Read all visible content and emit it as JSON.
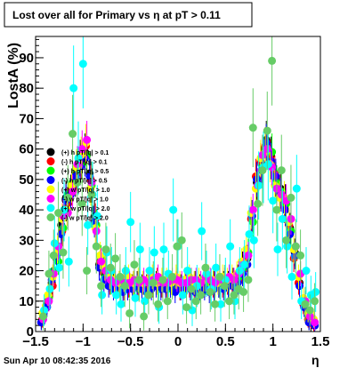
{
  "chart_data": {
    "type": "scatter",
    "title": "Lost over all for Primary vs   η at pT > 0.11",
    "xlabel": "η",
    "ylabel": "LostA (%)",
    "xlim": [
      -1.5,
      1.5
    ],
    "ylim": [
      0,
      97
    ],
    "x_ticks": [
      "−1.5",
      "−1",
      "−0.5",
      "0",
      "0.5",
      "1",
      "1.5"
    ],
    "y_ticks": [
      "0",
      "10",
      "20",
      "30",
      "40",
      "50",
      "60",
      "70",
      "80",
      "90"
    ],
    "grid": false,
    "legend_position": "middle-left",
    "series": [
      {
        "name": "(+) h pT/|q| > 0.1",
        "color": "#000000",
        "x": [
          -1.44,
          -1.38,
          -1.33,
          -1.28,
          -1.23,
          -1.18,
          -1.13,
          -1.08,
          -1.03,
          -0.98,
          -0.93,
          -0.88,
          -0.83,
          -0.78,
          -0.73,
          -0.68,
          -0.63,
          -0.58,
          -0.53,
          -0.48,
          -0.43,
          -0.38,
          -0.33,
          -0.28,
          -0.23,
          -0.18,
          -0.13,
          -0.08,
          -0.03,
          0.03,
          0.08,
          0.13,
          0.18,
          0.23,
          0.28,
          0.33,
          0.38,
          0.43,
          0.48,
          0.53,
          0.58,
          0.63,
          0.68,
          0.73,
          0.78,
          0.83,
          0.88,
          0.93,
          0.98,
          1.03,
          1.08,
          1.13,
          1.18,
          1.23,
          1.28,
          1.33,
          1.38,
          1.44
        ],
        "y": [
          3,
          9,
          16,
          24,
          35,
          44,
          46,
          50,
          57,
          59,
          52,
          38,
          22,
          19,
          17,
          16,
          15,
          15,
          16,
          15,
          16,
          15,
          15,
          16,
          16,
          15,
          16,
          15,
          15,
          15,
          15,
          16,
          16,
          15,
          15,
          15,
          16,
          15,
          16,
          16,
          17,
          18,
          22,
          24,
          38,
          49,
          55,
          63,
          58,
          50,
          47,
          43,
          34,
          26,
          16,
          8,
          3,
          2
        ]
      },
      {
        "name": "(-) h pT/|q| > 0.1",
        "color": "#ff0000",
        "x": [
          -1.43,
          -1.37,
          -1.32,
          -1.27,
          -1.22,
          -1.17,
          -1.12,
          -1.07,
          -1.02,
          -0.97,
          -0.92,
          -0.87,
          -0.82,
          -0.77,
          -0.72,
          -0.67,
          -0.62,
          -0.57,
          -0.52,
          -0.47,
          -0.42,
          -0.37,
          -0.32,
          -0.27,
          -0.22,
          -0.17,
          -0.12,
          -0.07,
          -0.02,
          0.02,
          0.07,
          0.12,
          0.17,
          0.22,
          0.27,
          0.32,
          0.37,
          0.42,
          0.47,
          0.52,
          0.57,
          0.62,
          0.67,
          0.72,
          0.77,
          0.82,
          0.87,
          0.92,
          0.97,
          1.02,
          1.07,
          1.12,
          1.17,
          1.22,
          1.27,
          1.32,
          1.37,
          1.43
        ],
        "y": [
          4,
          10,
          15,
          26,
          33,
          42,
          47,
          52,
          56,
          61,
          50,
          37,
          23,
          20,
          16,
          15,
          16,
          14,
          15,
          16,
          15,
          16,
          14,
          15,
          17,
          15,
          15,
          16,
          16,
          14,
          16,
          15,
          15,
          16,
          15,
          16,
          15,
          17,
          15,
          16,
          16,
          17,
          20,
          24,
          37,
          51,
          56,
          61,
          57,
          52,
          46,
          41,
          35,
          24,
          16,
          9,
          4,
          2
        ]
      },
      {
        "name": "(+) h pT/|q| > 0.5",
        "color": "#00ff00",
        "x": [
          -1.42,
          -1.36,
          -1.31,
          -1.26,
          -1.21,
          -1.16,
          -1.11,
          -1.06,
          -1.01,
          -0.96,
          -0.91,
          -0.86,
          -0.81,
          -0.76,
          -0.71,
          -0.66,
          -0.61,
          -0.56,
          -0.51,
          -0.46,
          -0.41,
          -0.36,
          -0.31,
          -0.26,
          -0.21,
          -0.16,
          -0.11,
          -0.06,
          -0.01,
          0.04,
          0.09,
          0.14,
          0.19,
          0.24,
          0.29,
          0.34,
          0.39,
          0.44,
          0.49,
          0.54,
          0.59,
          0.64,
          0.69,
          0.74,
          0.79,
          0.84,
          0.89,
          0.94,
          0.99,
          1.04,
          1.09,
          1.14,
          1.19,
          1.24,
          1.29,
          1.34,
          1.39,
          1.44
        ],
        "y": [
          5,
          11,
          20,
          23,
          34,
          45,
          49,
          53,
          55,
          58,
          48,
          35,
          24,
          18,
          16,
          15,
          14,
          16,
          15,
          15,
          14,
          16,
          16,
          15,
          15,
          16,
          14,
          15,
          16,
          15,
          16,
          15,
          14,
          15,
          16,
          15,
          15,
          16,
          16,
          17,
          16,
          18,
          21,
          26,
          36,
          48,
          54,
          60,
          59,
          49,
          46,
          42,
          33,
          25,
          19,
          10,
          5,
          3
        ]
      },
      {
        "name": "(-) h pT/|q| > 0.5",
        "color": "#0000ff",
        "x": [
          -1.44,
          -1.38,
          -1.33,
          -1.28,
          -1.23,
          -1.18,
          -1.13,
          -1.08,
          -1.03,
          -0.98,
          -0.93,
          -0.88,
          -0.83,
          -0.78,
          -0.73,
          -0.68,
          -0.63,
          -0.58,
          -0.53,
          -0.48,
          -0.43,
          -0.38,
          -0.33,
          -0.28,
          -0.23,
          -0.18,
          -0.13,
          -0.08,
          -0.03,
          0.03,
          0.08,
          0.13,
          0.18,
          0.23,
          0.28,
          0.33,
          0.38,
          0.43,
          0.48,
          0.53,
          0.58,
          0.63,
          0.68,
          0.73,
          0.78,
          0.83,
          0.88,
          0.93,
          0.98,
          1.03,
          1.08,
          1.13,
          1.18,
          1.23,
          1.28,
          1.33,
          1.38,
          1.44
        ],
        "y": [
          3,
          8,
          17,
          25,
          32,
          43,
          45,
          51,
          54,
          57,
          51,
          36,
          21,
          17,
          15,
          14,
          15,
          13,
          14,
          14,
          15,
          14,
          13,
          14,
          15,
          14,
          14,
          15,
          13,
          14,
          15,
          14,
          13,
          14,
          14,
          13,
          14,
          15,
          14,
          15,
          15,
          16,
          19,
          22,
          38,
          50,
          53,
          62,
          56,
          51,
          45,
          40,
          32,
          25,
          15,
          8,
          3,
          2
        ]
      },
      {
        "name": "(+) w pT/|q| > 1.0",
        "color": "#ffff00",
        "x": [
          -1.43,
          -1.37,
          -1.32,
          -1.27,
          -1.22,
          -1.17,
          -1.12,
          -1.07,
          -1.02,
          -0.97,
          -0.92,
          -0.87,
          -0.82,
          -0.77,
          -0.72,
          -0.67,
          -0.62,
          -0.57,
          -0.52,
          -0.47,
          -0.42,
          -0.37,
          -0.32,
          -0.27,
          -0.22,
          -0.17,
          -0.12,
          -0.07,
          -0.02,
          0.02,
          0.07,
          0.12,
          0.17,
          0.22,
          0.27,
          0.32,
          0.37,
          0.42,
          0.47,
          0.52,
          0.57,
          0.62,
          0.67,
          0.72,
          0.77,
          0.82,
          0.87,
          0.92,
          0.97,
          1.02,
          1.07,
          1.12,
          1.17,
          1.22,
          1.27,
          1.32,
          1.37,
          1.43
        ],
        "y": [
          6,
          12,
          18,
          27,
          37,
          40,
          48,
          54,
          58,
          62,
          47,
          34,
          25,
          21,
          18,
          17,
          16,
          17,
          18,
          16,
          17,
          16,
          17,
          18,
          16,
          17,
          17,
          16,
          18,
          16,
          17,
          18,
          16,
          17,
          17,
          18,
          17,
          16,
          18,
          17,
          18,
          19,
          23,
          27,
          39,
          47,
          57,
          59,
          55,
          48,
          44,
          44,
          36,
          27,
          18,
          11,
          6,
          4
        ]
      },
      {
        "name": "(-) w pT/|q| > 1.0",
        "color": "#ff00ff",
        "x": [
          -1.42,
          -1.36,
          -1.31,
          -1.26,
          -1.21,
          -1.16,
          -1.11,
          -1.06,
          -1.01,
          -0.96,
          -0.91,
          -0.86,
          -0.81,
          -0.76,
          -0.71,
          -0.66,
          -0.61,
          -0.56,
          -0.51,
          -0.46,
          -0.41,
          -0.36,
          -0.31,
          -0.26,
          -0.21,
          -0.16,
          -0.11,
          -0.06,
          -0.01,
          0.04,
          0.09,
          0.14,
          0.19,
          0.24,
          0.29,
          0.34,
          0.39,
          0.44,
          0.49,
          0.54,
          0.59,
          0.64,
          0.69,
          0.74,
          0.79,
          0.84,
          0.89,
          0.94,
          0.99,
          1.04,
          1.09,
          1.14,
          1.19,
          1.24,
          1.29,
          1.34,
          1.39,
          1.44
        ],
        "y": [
          4,
          10,
          19,
          28,
          38,
          39,
          46,
          55,
          60,
          63,
          49,
          33,
          23,
          20,
          17,
          16,
          17,
          16,
          16,
          17,
          16,
          17,
          16,
          17,
          18,
          16,
          16,
          17,
          17,
          16,
          16,
          17,
          17,
          16,
          18,
          17,
          16,
          17,
          17,
          18,
          17,
          19,
          22,
          25,
          40,
          48,
          58,
          60,
          54,
          47,
          45,
          43,
          37,
          28,
          19,
          10,
          5,
          3
        ]
      },
      {
        "name": "(+) w pT/|q| > 2.0",
        "color": "#00ffff",
        "x": [
          -1.41,
          -1.35,
          -1.3,
          -1.25,
          -1.2,
          -1.15,
          -1.1,
          -1.05,
          -1.0,
          -0.95,
          -0.9,
          -0.85,
          -0.8,
          -0.75,
          -0.7,
          -0.65,
          -0.6,
          -0.55,
          -0.5,
          -0.45,
          -0.4,
          -0.35,
          -0.3,
          -0.25,
          -0.2,
          -0.15,
          -0.1,
          -0.05,
          0.0,
          0.05,
          0.1,
          0.15,
          0.2,
          0.25,
          0.3,
          0.35,
          0.4,
          0.45,
          0.5,
          0.55,
          0.6,
          0.65,
          0.7,
          0.75,
          0.8,
          0.85,
          0.9,
          0.95,
          1.0,
          1.05,
          1.1,
          1.15,
          1.2,
          1.25,
          1.3,
          1.35,
          1.4,
          1.45
        ],
        "y": [
          7,
          14,
          29,
          21,
          40,
          23,
          80,
          57,
          88,
          35,
          45,
          38,
          12,
          26,
          20,
          12,
          9,
          20,
          36,
          11,
          27,
          10,
          20,
          26,
          8,
          27,
          19,
          40,
          28,
          12,
          20,
          7,
          15,
          33,
          19,
          14,
          21,
          9,
          17,
          28,
          10,
          20,
          22,
          32,
          30,
          48,
          54,
          55,
          43,
          27,
          37,
          28,
          18,
          47,
          10,
          20,
          12,
          13
        ]
      },
      {
        "name": "(-) w pT/|q| > 2.0",
        "color": "#66cc66",
        "x": [
          -1.42,
          -1.36,
          -1.31,
          -1.26,
          -1.21,
          -1.16,
          -1.11,
          -1.06,
          -1.01,
          -0.96,
          -0.91,
          -0.86,
          -0.81,
          -0.76,
          -0.71,
          -0.66,
          -0.61,
          -0.56,
          -0.51,
          -0.46,
          -0.41,
          -0.36,
          -0.31,
          -0.26,
          -0.21,
          -0.16,
          -0.11,
          -0.06,
          -0.01,
          0.04,
          0.09,
          0.14,
          0.19,
          0.24,
          0.29,
          0.34,
          0.39,
          0.44,
          0.49,
          0.54,
          0.59,
          0.64,
          0.69,
          0.74,
          0.79,
          0.84,
          0.89,
          0.94,
          0.99,
          1.04,
          1.09,
          1.14,
          1.19,
          1.24,
          1.29,
          1.34,
          1.39,
          1.44
        ],
        "y": [
          5,
          19,
          25,
          39,
          26,
          44,
          65,
          49,
          42,
          20,
          45,
          28,
          15,
          27,
          21,
          24,
          18,
          15,
          6,
          22,
          17,
          5,
          12,
          16,
          9,
          17,
          10,
          18,
          28,
          30,
          8,
          14,
          10,
          12,
          21,
          13,
          9,
          18,
          15,
          10,
          12,
          14,
          13,
          17,
          67,
          42,
          53,
          66,
          89,
          40,
          53,
          30,
          44,
          28,
          25,
          9,
          7,
          10
        ]
      }
    ]
  },
  "footer": {
    "timestamp": "Sun Apr 10 08:42:35 2016"
  }
}
